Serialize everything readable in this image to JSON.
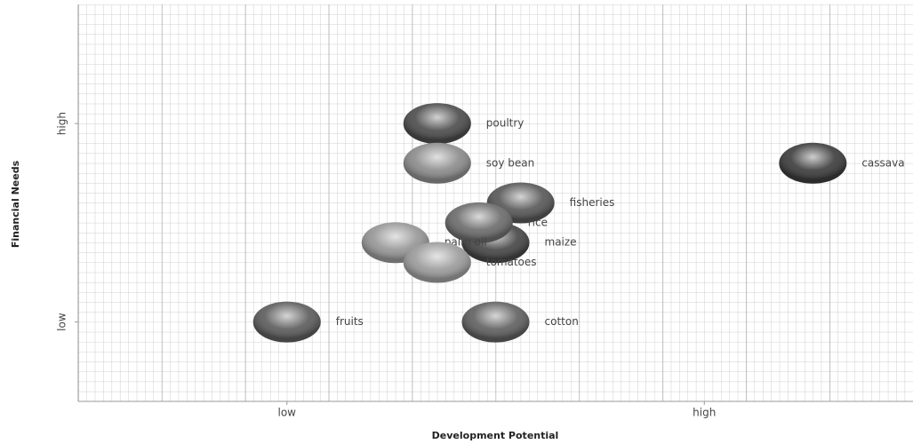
{
  "chart_data": {
    "type": "scatter",
    "x_label": "Development Potential",
    "y_label": "Financial Needs",
    "xlim": [
      0,
      10
    ],
    "ylim": [
      0,
      4
    ],
    "xticks": [
      {
        "value": 2.5,
        "label": "low"
      },
      {
        "value": 7.5,
        "label": "high"
      }
    ],
    "yticks": [
      {
        "value": 0.8,
        "label": "low"
      },
      {
        "value": 2.8,
        "label": "high"
      }
    ],
    "grid": true,
    "points": [
      {
        "label": "poultry",
        "x": 4.3,
        "y": 2.8,
        "color": "#4a4a4a"
      },
      {
        "label": "soy bean",
        "x": 4.3,
        "y": 2.4,
        "color": "#8a8a8a"
      },
      {
        "label": "cassava",
        "x": 8.8,
        "y": 2.4,
        "color": "#3a3a3a"
      },
      {
        "label": "fisheries",
        "x": 5.3,
        "y": 2.0,
        "color": "#555555"
      },
      {
        "label": "maize",
        "x": 5.0,
        "y": 1.6,
        "color": "#444444"
      },
      {
        "label": "rice",
        "x": 4.8,
        "y": 1.8,
        "color": "#6a6a6a"
      },
      {
        "label": "palm oil",
        "x": 3.8,
        "y": 1.6,
        "color": "#959595"
      },
      {
        "label": "tomatoes",
        "x": 4.3,
        "y": 1.4,
        "color": "#9a9a9a"
      },
      {
        "label": "fruits",
        "x": 2.5,
        "y": 0.8,
        "color": "#5a5a5a"
      },
      {
        "label": "cotton",
        "x": 5.0,
        "y": 0.8,
        "color": "#5e5e5e"
      }
    ]
  }
}
